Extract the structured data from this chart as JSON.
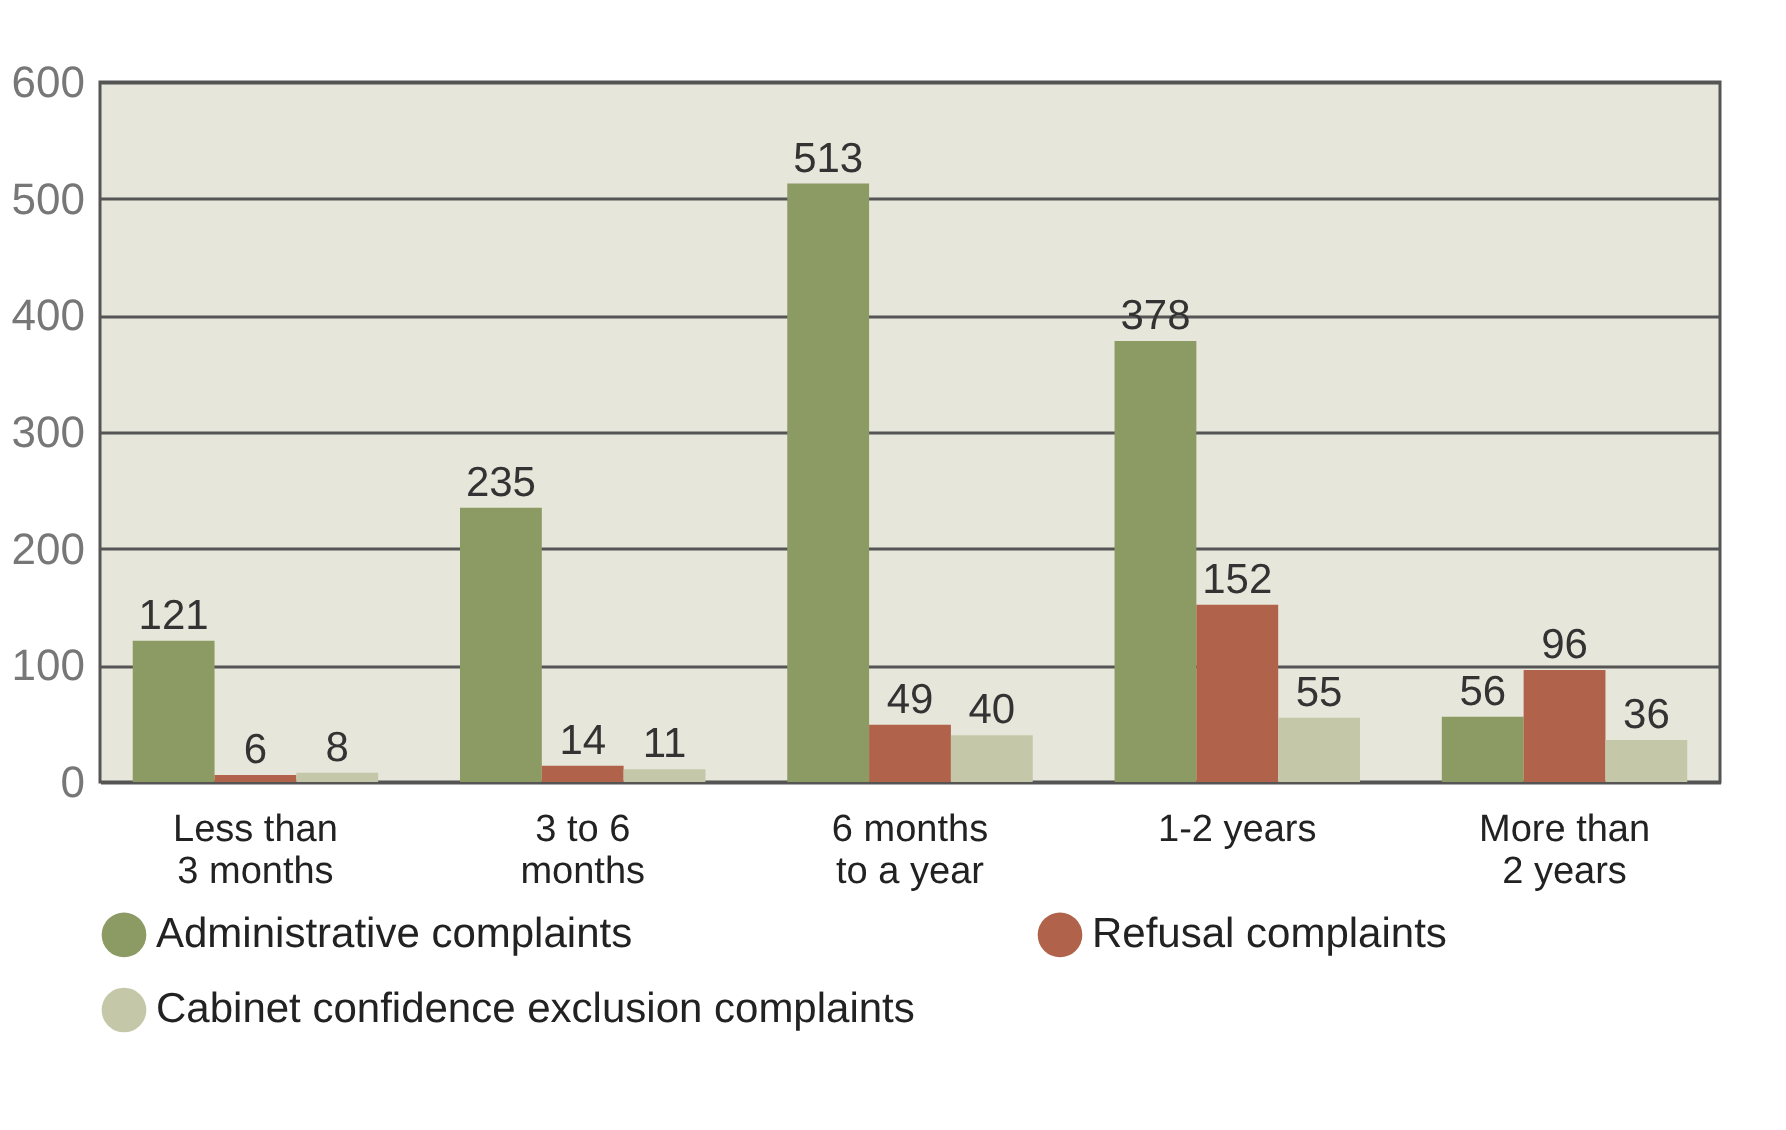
{
  "chart_data": {
    "type": "bar",
    "categories": [
      "Less than\n3 months",
      "3 to 6\nmonths",
      "6 months\nto a year",
      "1-2 years",
      "More than\n2 years"
    ],
    "series": [
      {
        "name": "Administrative complaints",
        "color": "#8c9a64",
        "values": [
          121,
          235,
          513,
          378,
          56
        ]
      },
      {
        "name": "Refusal complaints",
        "color": "#b0634a",
        "values": [
          6,
          14,
          49,
          152,
          96
        ]
      },
      {
        "name": "Cabinet confidence exclusion complaints",
        "color": "#c4c8a8",
        "values": [
          8,
          11,
          40,
          55,
          36
        ]
      }
    ],
    "ylim": [
      0,
      600
    ],
    "yticks": [
      0,
      100,
      200,
      300,
      400,
      500,
      600
    ],
    "grid": "y",
    "data_labels": true,
    "legend": "bottom"
  }
}
